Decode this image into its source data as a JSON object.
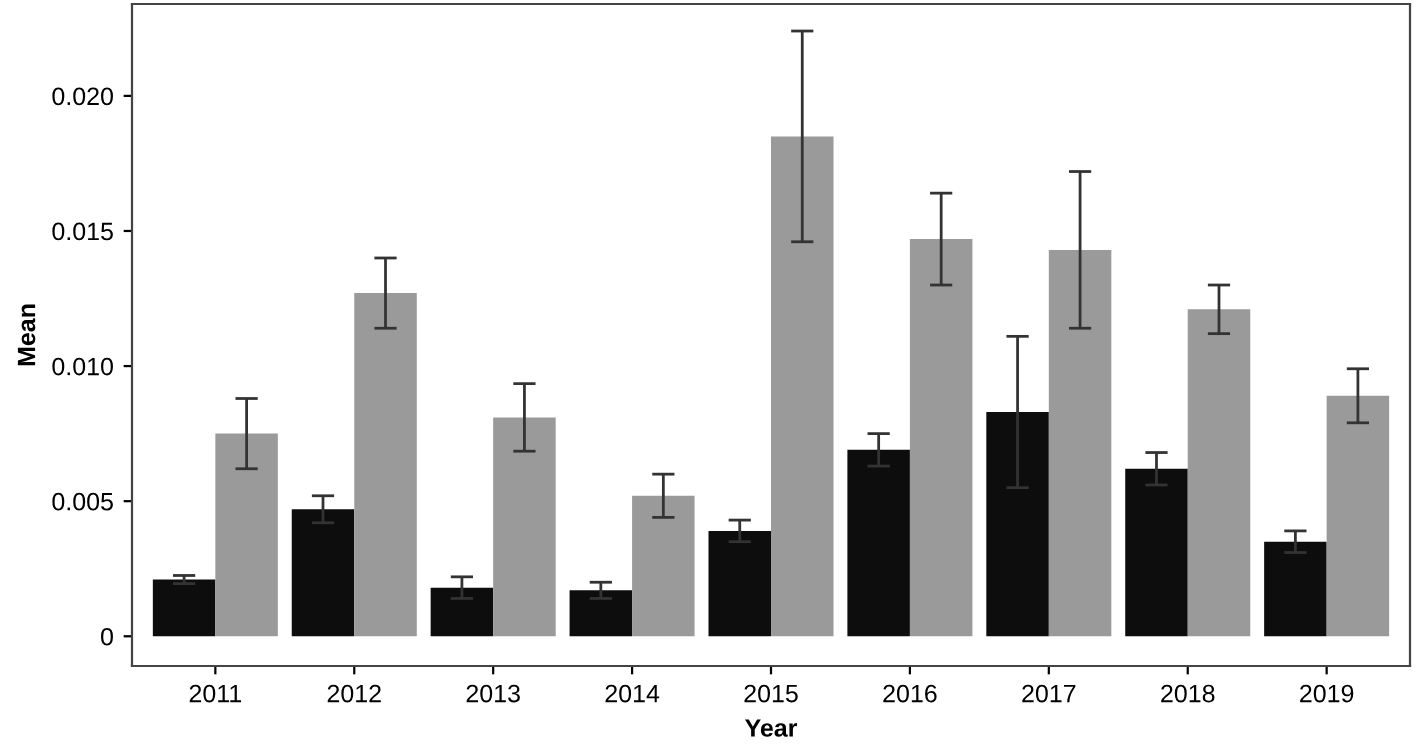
{
  "chart_data": {
    "type": "bar",
    "xlabel": "Year",
    "ylabel": "Mean",
    "categories": [
      "2011",
      "2012",
      "2013",
      "2014",
      "2015",
      "2016",
      "2017",
      "2018",
      "2019"
    ],
    "series": [
      {
        "color": "#0d0d0d",
        "values": [
          0.0021,
          0.0047,
          0.0018,
          0.0017,
          0.0039,
          0.0069,
          0.0083,
          0.0062,
          0.0035
        ],
        "errors": [
          0.00015,
          0.0005,
          0.0004,
          0.0003,
          0.0004,
          0.0006,
          0.0028,
          0.0006,
          0.0004
        ]
      },
      {
        "color": "#9a9a9a",
        "values": [
          0.0075,
          0.0127,
          0.0081,
          0.0052,
          0.0185,
          0.0147,
          0.0143,
          0.0121,
          0.0089
        ],
        "errors": [
          0.0013,
          0.0013,
          0.00125,
          0.0008,
          0.0039,
          0.0017,
          0.0029,
          0.0009,
          0.001
        ]
      }
    ],
    "ylim": [
      -0.0011,
      0.0234
    ],
    "yticks": [
      {
        "value": 0,
        "label": "0"
      },
      0.005,
      {
        "value": 0.01,
        "label": "0.010"
      },
      0.015,
      {
        "value": 0.02,
        "label": "0.020"
      }
    ],
    "grid": false
  }
}
